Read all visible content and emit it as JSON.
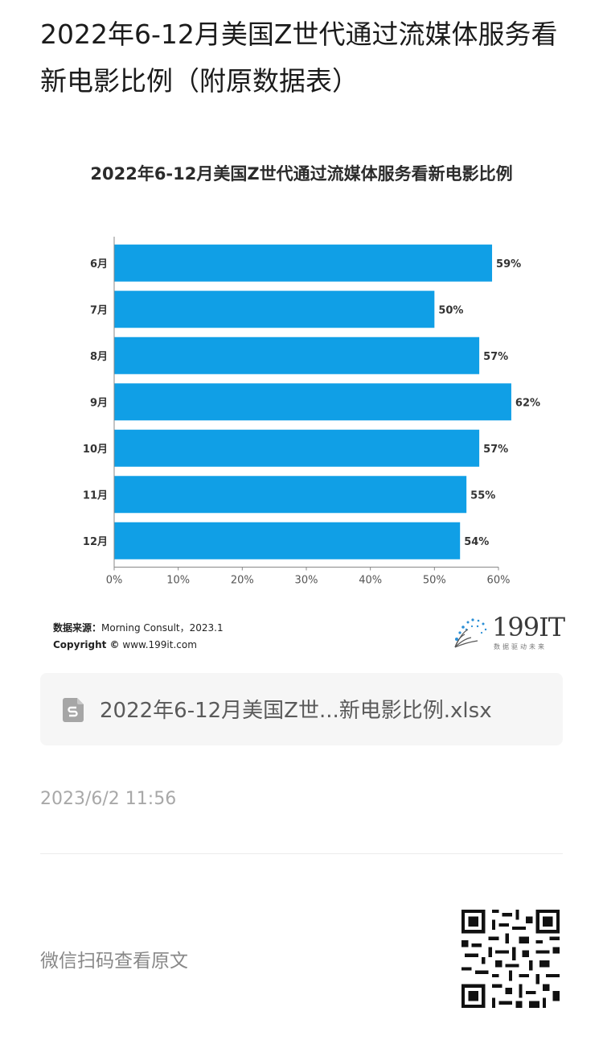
{
  "article": {
    "title": "2022年6-12月美国Z世代通过流媒体服务看新电影比例（附原数据表）"
  },
  "chart_data": {
    "type": "bar",
    "orientation": "horizontal",
    "title": "2022年6-12月美国Z世代通过流媒体服务看新电影比例",
    "categories": [
      "6月",
      "7月",
      "8月",
      "9月",
      "10月",
      "11月",
      "12月"
    ],
    "values": [
      59,
      50,
      57,
      62,
      57,
      55,
      54
    ],
    "value_labels": [
      "59%",
      "50%",
      "57%",
      "62%",
      "57%",
      "55%",
      "54%"
    ],
    "xlim": [
      0,
      60
    ],
    "x_ticks": [
      "0%",
      "10%",
      "20%",
      "30%",
      "40%",
      "50%",
      "60%"
    ],
    "xlabel": "",
    "ylabel": "",
    "bar_color": "#109fe6",
    "grid": false
  },
  "source": {
    "label": "数据来源：",
    "value": "Morning Consult，2023.1",
    "copyright_label": "Copyright ©",
    "copyright_value": "www.199it.com"
  },
  "logo": {
    "text": "199IT",
    "subtitle": "数据驱动未来"
  },
  "attachment": {
    "icon": "spreadsheet-file-icon",
    "filename": "2022年6-12月美国Z世...新电影比例.xlsx"
  },
  "timestamp": "2023/6/2 11:56",
  "footer": {
    "scan_text": "微信扫码查看原文",
    "qr_icon": "qr-code-icon"
  }
}
